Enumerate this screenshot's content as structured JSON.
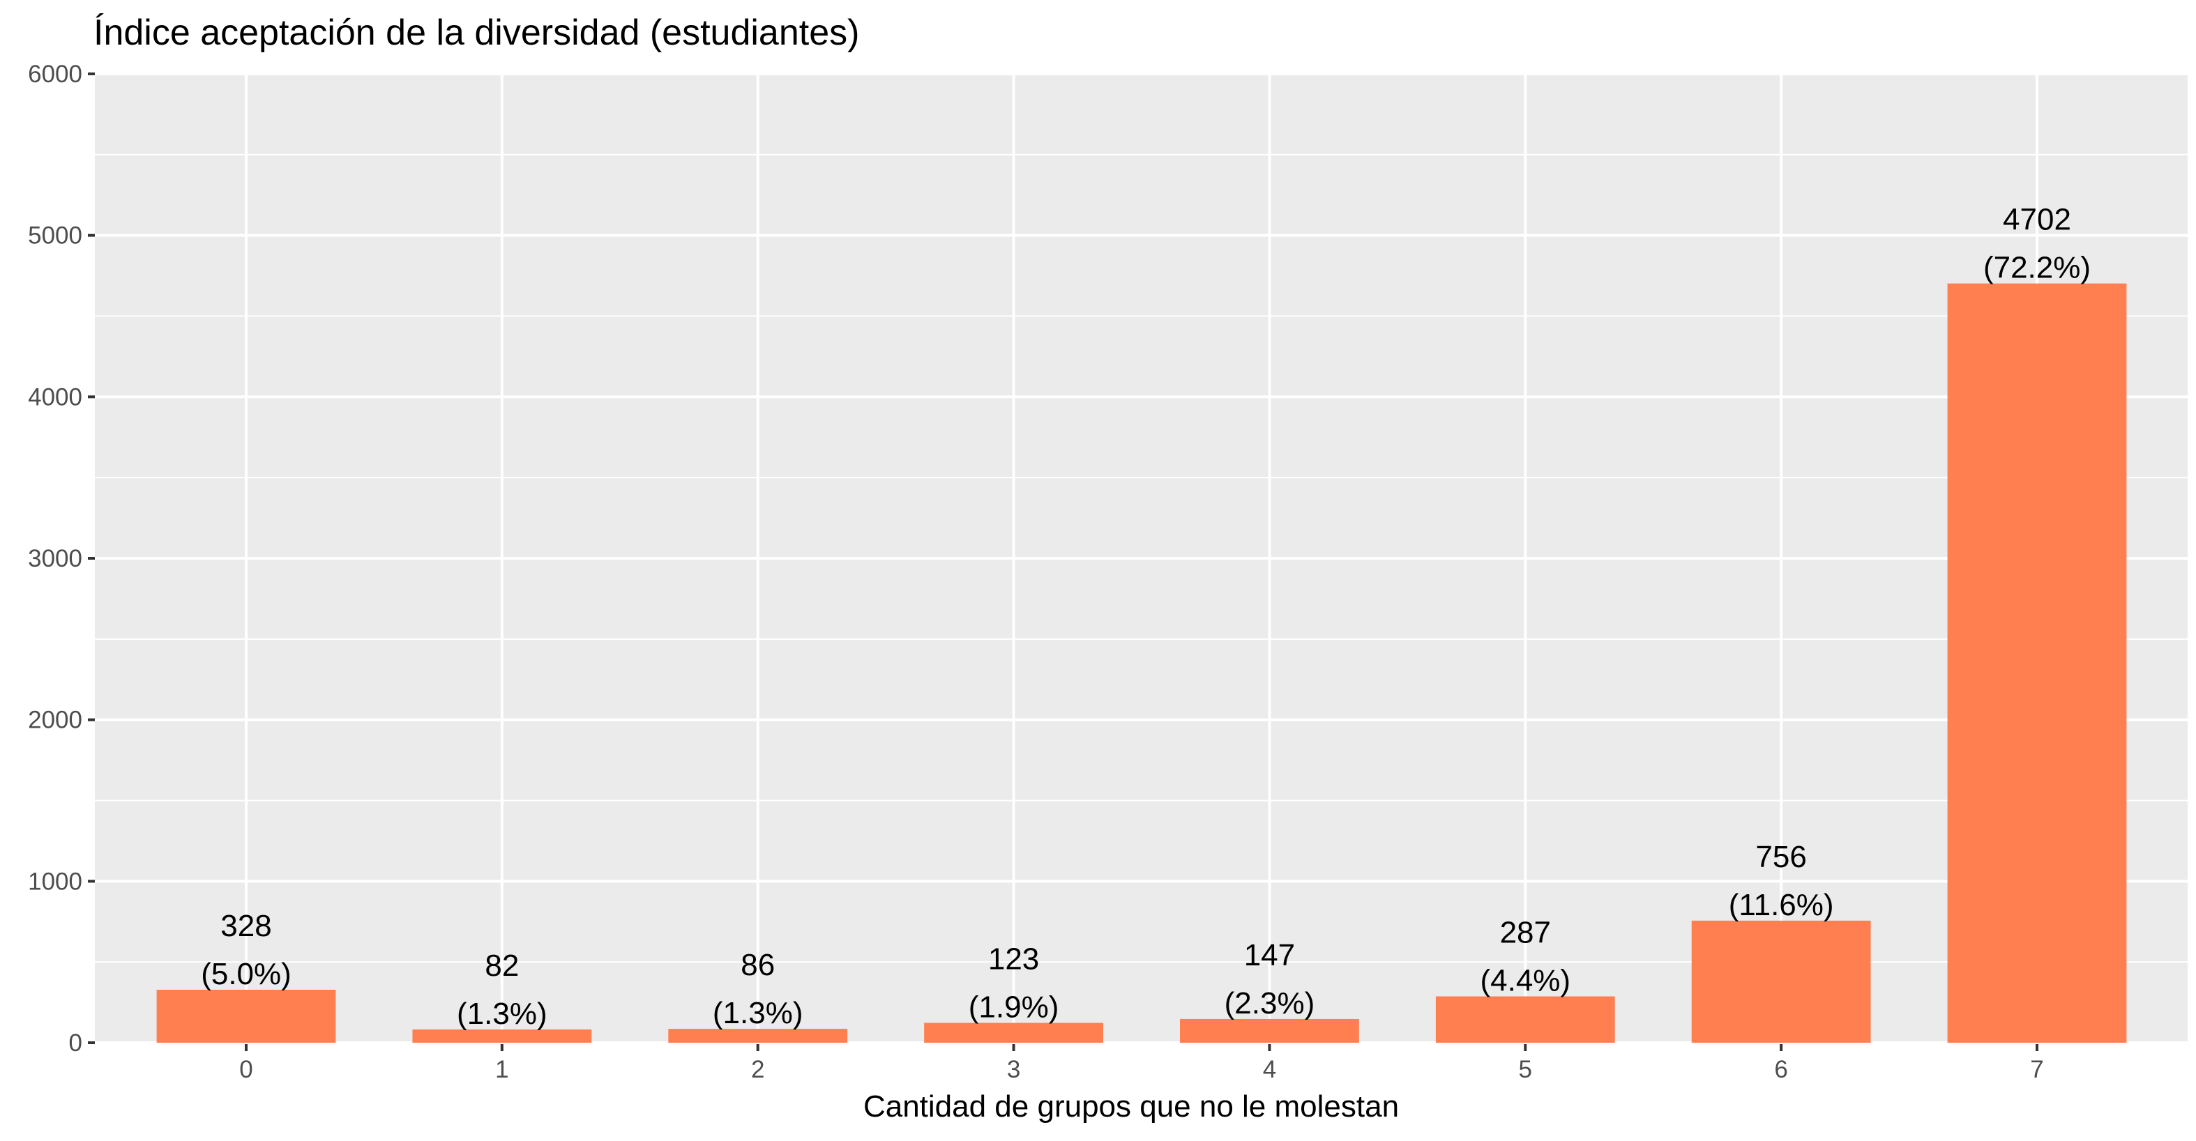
{
  "chart_data": {
    "type": "bar",
    "title": "Índice aceptación de la diversidad (estudiantes)",
    "xlabel": "Cantidad de grupos que no le molestan",
    "ylabel": "",
    "categories": [
      "0",
      "1",
      "2",
      "3",
      "4",
      "5",
      "6",
      "7"
    ],
    "values": [
      328,
      82,
      86,
      123,
      147,
      287,
      756,
      4702
    ],
    "value_labels": [
      "328",
      "82",
      "86",
      "123",
      "147",
      "287",
      "756",
      "4702"
    ],
    "percent_labels": [
      "(5.0%)",
      "(1.3%)",
      "(1.3%)",
      "(1.9%)",
      "(2.3%)",
      "(4.4%)",
      "(11.6%)",
      "(72.2%)"
    ],
    "ylim": [
      0,
      6000
    ],
    "yticks": [
      0,
      1000,
      2000,
      3000,
      4000,
      5000,
      6000
    ],
    "ytick_labels": [
      "0",
      "1000",
      "2000",
      "3000",
      "4000",
      "5000",
      "6000"
    ],
    "grid": true,
    "bar_color": "#FF7F50",
    "panel_background": "#EBEBEB",
    "grid_color": "#FFFFFF"
  }
}
